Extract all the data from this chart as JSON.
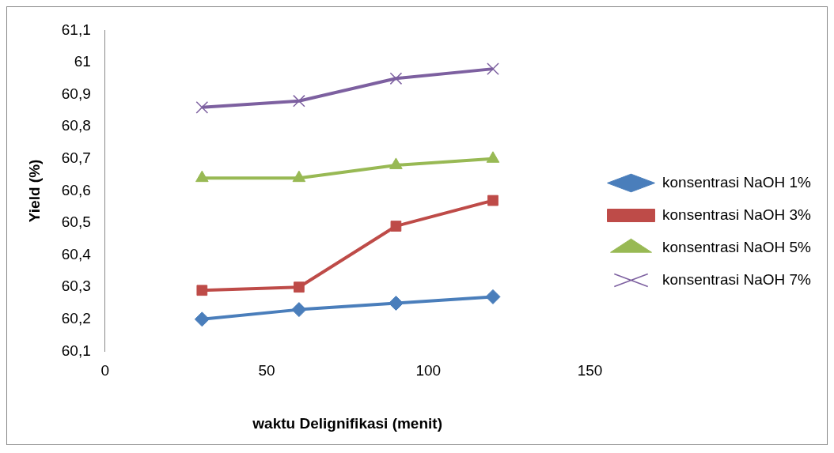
{
  "chart_data": {
    "type": "line",
    "xlabel": "waktu Delignifikasi (menit)",
    "ylabel": "Yield (%)",
    "xlim": [
      0,
      150
    ],
    "xticks": [
      0,
      50,
      100,
      150
    ],
    "ylim": [
      60.1,
      61.1
    ],
    "yticks": [
      {
        "value": 60.1,
        "label": "60,1"
      },
      {
        "value": 60.2,
        "label": "60,2"
      },
      {
        "value": 60.3,
        "label": "60,3"
      },
      {
        "value": 60.4,
        "label": "60,4"
      },
      {
        "value": 60.5,
        "label": "60,5"
      },
      {
        "value": 60.6,
        "label": "60,6"
      },
      {
        "value": 60.7,
        "label": "60,7"
      },
      {
        "value": 60.8,
        "label": "60,8"
      },
      {
        "value": 60.9,
        "label": "60,9"
      },
      {
        "value": 61,
        "label": "61"
      },
      {
        "value": 61.1,
        "label": "61,1"
      }
    ],
    "grid": false,
    "legend": "right",
    "x": [
      30,
      60,
      90,
      120
    ],
    "series": [
      {
        "name": "konsentrasi NaOH 1%",
        "color": "#4a7ebb",
        "marker": "diamond",
        "values": [
          60.2,
          60.23,
          60.25,
          60.27
        ]
      },
      {
        "name": "konsentrasi NaOH 3%",
        "color": "#be4b48",
        "marker": "square",
        "values": [
          60.29,
          60.3,
          60.49,
          60.57
        ]
      },
      {
        "name": "konsentrasi NaOH 5%",
        "color": "#98b954",
        "marker": "triangle",
        "values": [
          60.64,
          60.64,
          60.68,
          60.7
        ]
      },
      {
        "name": "konsentrasi NaOH 7%",
        "color": "#7d60a0",
        "marker": "cross",
        "values": [
          60.86,
          60.88,
          60.95,
          60.98
        ]
      }
    ]
  }
}
